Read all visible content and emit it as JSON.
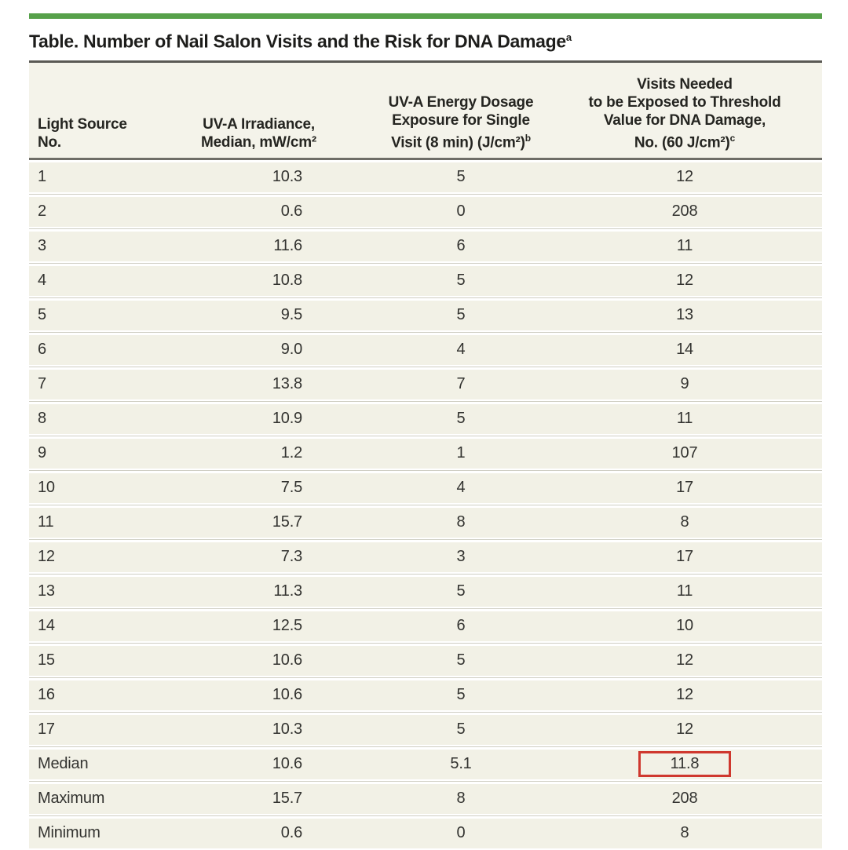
{
  "title": {
    "text": "Table. Number of Nail Salon Visits and the Risk for DNA Damage",
    "footnote_marker": "a"
  },
  "colors": {
    "accent_green": "#57a14a",
    "header_bg": "#f4f3ea",
    "row_bg": "#f2f1e6",
    "highlight_box_red": "#cf382e"
  },
  "table": {
    "header": {
      "col1": {
        "line1": "Light Source",
        "line2": "No."
      },
      "col2": {
        "line1": "UV-A Irradiance,",
        "line2": "Median, mW/cm²"
      },
      "col3": {
        "line1": "UV-A Energy Dosage",
        "line2": "Exposure for Single",
        "line3": "Visit (8 min) (J/cm²)",
        "footnote_marker": "b"
      },
      "col4": {
        "line1": "Visits Needed",
        "line2": "to be Exposed to Threshold",
        "line3": "Value for DNA Damage,",
        "line4": "No. (60 J/cm²)",
        "footnote_marker": "c"
      }
    },
    "rows": [
      {
        "source": "1",
        "irradiance": "10.3",
        "dosage": "5",
        "visits": "12"
      },
      {
        "source": "2",
        "irradiance": "0.6",
        "dosage": "0",
        "visits": "208"
      },
      {
        "source": "3",
        "irradiance": "11.6",
        "dosage": "6",
        "visits": "11"
      },
      {
        "source": "4",
        "irradiance": "10.8",
        "dosage": "5",
        "visits": "12"
      },
      {
        "source": "5",
        "irradiance": "9.5",
        "dosage": "5",
        "visits": "13"
      },
      {
        "source": "6",
        "irradiance": "9.0",
        "dosage": "4",
        "visits": "14"
      },
      {
        "source": "7",
        "irradiance": "13.8",
        "dosage": "7",
        "visits": "9"
      },
      {
        "source": "8",
        "irradiance": "10.9",
        "dosage": "5",
        "visits": "11"
      },
      {
        "source": "9",
        "irradiance": "1.2",
        "dosage": "1",
        "visits": "107"
      },
      {
        "source": "10",
        "irradiance": "7.5",
        "dosage": "4",
        "visits": "17"
      },
      {
        "source": "11",
        "irradiance": "15.7",
        "dosage": "8",
        "visits": "8"
      },
      {
        "source": "12",
        "irradiance": "7.3",
        "dosage": "3",
        "visits": "17"
      },
      {
        "source": "13",
        "irradiance": "11.3",
        "dosage": "5",
        "visits": "11"
      },
      {
        "source": "14",
        "irradiance": "12.5",
        "dosage": "6",
        "visits": "10"
      },
      {
        "source": "15",
        "irradiance": "10.6",
        "dosage": "5",
        "visits": "12"
      },
      {
        "source": "16",
        "irradiance": "10.6",
        "dosage": "5",
        "visits": "12"
      },
      {
        "source": "17",
        "irradiance": "10.3",
        "dosage": "5",
        "visits": "12"
      },
      {
        "source": "Median",
        "irradiance": "10.6",
        "dosage": "5.1",
        "visits": "11.8",
        "highlight_visits": true
      },
      {
        "source": "Maximum",
        "irradiance": "15.7",
        "dosage": "8",
        "visits": "208"
      },
      {
        "source": "Minimum",
        "irradiance": "0.6",
        "dosage": "0",
        "visits": "8"
      }
    ]
  }
}
